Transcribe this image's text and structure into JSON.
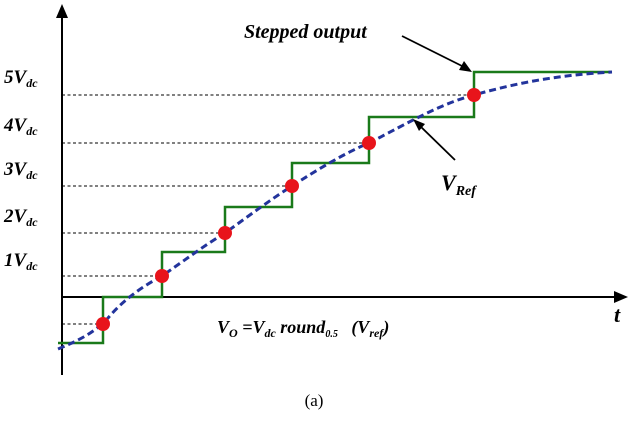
{
  "figure": {
    "caption": "(a)",
    "axis_label_t": "t",
    "level_labels": [
      {
        "main": "5V",
        "sub": "dc"
      },
      {
        "main": "4V",
        "sub": "dc"
      },
      {
        "main": "3V",
        "sub": "dc"
      },
      {
        "main": "2V",
        "sub": "dc"
      },
      {
        "main": "1V",
        "sub": "dc"
      }
    ],
    "stepped_output_label": "Stepped output",
    "vref_label": {
      "main": "V",
      "sub": "Ref"
    },
    "equation": {
      "v": "V",
      "o_sub": "O",
      "eq_v": " =V",
      "dc_sub": "dc",
      "round": " round",
      "half_sub": "0.5",
      "paren_open": "   (V",
      "ref_sub": "ref",
      "paren_close": ")"
    },
    "colors": {
      "axis": "#000000",
      "stepped": "#1a7a1a",
      "reference": "#23349c",
      "sample_points": "#e8141b",
      "guide_lines": "#000000"
    }
  }
}
